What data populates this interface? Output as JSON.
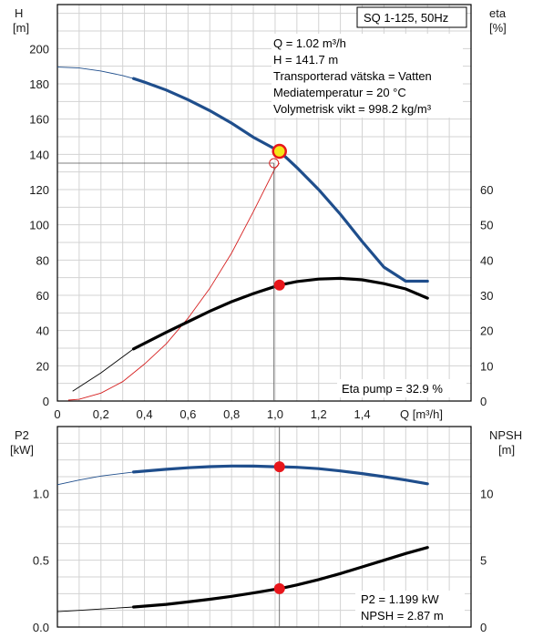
{
  "chart_data": [
    {
      "type": "line",
      "panel": "performance",
      "title": "SQ 1-125, 50Hz",
      "xlabel": "Q [m³/h]",
      "xlim": [
        0,
        1.9
      ],
      "x_ticks": [
        "0",
        "0,2",
        "0,4",
        "0,6",
        "0,8",
        "1,0",
        "1,2",
        "1,4"
      ],
      "y_left": {
        "label_top": "H",
        "label_unit": "[m]",
        "lim": [
          0,
          225
        ],
        "ticks": [
          "0",
          "20",
          "40",
          "60",
          "80",
          "100",
          "120",
          "140",
          "160",
          "180",
          "200"
        ]
      },
      "y_right": {
        "label_top": "eta",
        "label_unit": "[%]",
        "lim": [
          0,
          112.5
        ],
        "ticks": [
          "0",
          "10",
          "20",
          "30",
          "40",
          "50",
          "60"
        ]
      },
      "grid": true,
      "info_lines": [
        "Q = 1.02 m³/h",
        "H = 141.7 m",
        "Transporterad vätska = Vatten",
        "Mediatemperatur = 20 °C",
        "Volymetrisk vikt = 998.2 kg/m³"
      ],
      "eta_note": "Eta pump = 32.9 %",
      "series": [
        {
          "role": "head",
          "axis": "left",
          "color": "#1f4e8c",
          "x": [
            0.0,
            0.1,
            0.2,
            0.3,
            0.35,
            0.4,
            0.5,
            0.6,
            0.7,
            0.8,
            0.9,
            1.0,
            1.02,
            1.1,
            1.2,
            1.3,
            1.4,
            1.5,
            1.6,
            1.7
          ],
          "y": [
            189.5,
            189.0,
            187.3,
            184.7,
            183.0,
            181.0,
            176.5,
            171.0,
            164.8,
            157.7,
            149.7,
            143.0,
            141.7,
            132.5,
            120.0,
            106.0,
            90.5,
            76.0,
            68.0,
            68.0
          ],
          "solid_from": 0.35,
          "solid_to": 1.7
        },
        {
          "role": "efficiency",
          "axis": "right",
          "color": "#000000",
          "x": [
            0.07,
            0.2,
            0.35,
            0.5,
            0.6,
            0.7,
            0.8,
            0.9,
            1.0,
            1.02,
            1.1,
            1.2,
            1.3,
            1.4,
            1.5,
            1.6,
            1.7
          ],
          "y": [
            2.8,
            8.0,
            14.8,
            19.5,
            22.5,
            25.5,
            28.2,
            30.5,
            32.5,
            32.9,
            33.9,
            34.6,
            34.8,
            34.4,
            33.3,
            31.8,
            29.2
          ],
          "solid_from": 0.35,
          "solid_to": 1.7
        },
        {
          "role": "system-curve",
          "axis": "left",
          "color": "#d62020",
          "x": [
            0.05,
            0.1,
            0.2,
            0.3,
            0.4,
            0.5,
            0.6,
            0.7,
            0.8,
            0.9,
            1.0,
            1.02
          ],
          "y": [
            0.5,
            1.0,
            4.5,
            11.0,
            21.0,
            32.5,
            47.0,
            64.0,
            84.0,
            107.5,
            132.0,
            135.0
          ]
        }
      ],
      "duty_points": [
        {
          "axis": "left",
          "x": 1.02,
          "y": 141.7,
          "style": "operating"
        },
        {
          "axis": "right",
          "x": 1.02,
          "y": 32.9,
          "style": "marker"
        },
        {
          "axis": "left",
          "x": 1.02,
          "y": 135.0,
          "style": "hollow"
        }
      ]
    },
    {
      "type": "line",
      "panel": "power-npsh",
      "xlim": [
        0,
        1.9
      ],
      "y_left": {
        "label_top": "P2",
        "label_unit": "[kW]",
        "lim": [
          0,
          1.5
        ],
        "ticks": [
          "0.0",
          "0.5",
          "1.0"
        ]
      },
      "y_right": {
        "label_top": "NPSH",
        "label_unit": "[m]",
        "lim": [
          0,
          15
        ],
        "ticks": [
          "0",
          "5",
          "10"
        ]
      },
      "grid": true,
      "info_lines": [
        "P2 = 1.199 kW",
        "NPSH = 2.87 m"
      ],
      "series": [
        {
          "role": "power",
          "axis": "left",
          "color": "#1f4e8c",
          "x": [
            0.0,
            0.1,
            0.2,
            0.35,
            0.5,
            0.6,
            0.7,
            0.8,
            0.9,
            1.0,
            1.02,
            1.1,
            1.2,
            1.3,
            1.4,
            1.5,
            1.6,
            1.7
          ],
          "y": [
            1.065,
            1.1,
            1.13,
            1.16,
            1.18,
            1.192,
            1.2,
            1.205,
            1.204,
            1.199,
            1.199,
            1.195,
            1.185,
            1.168,
            1.148,
            1.125,
            1.1,
            1.072
          ],
          "solid_from": 0.35,
          "solid_to": 1.7
        },
        {
          "role": "npsh",
          "axis": "right",
          "color": "#000000",
          "x": [
            0.0,
            0.1,
            0.2,
            0.35,
            0.5,
            0.6,
            0.7,
            0.8,
            0.9,
            1.0,
            1.02,
            1.1,
            1.2,
            1.3,
            1.4,
            1.5,
            1.6,
            1.7
          ],
          "y": [
            1.15,
            1.25,
            1.35,
            1.5,
            1.7,
            1.88,
            2.08,
            2.3,
            2.55,
            2.82,
            2.87,
            3.15,
            3.55,
            4.0,
            4.5,
            5.0,
            5.5,
            5.95
          ],
          "solid_from": 0.35,
          "solid_to": 1.7
        }
      ],
      "duty_points": [
        {
          "axis": "left",
          "x": 1.02,
          "y": 1.199,
          "style": "marker"
        },
        {
          "axis": "right",
          "x": 1.02,
          "y": 2.87,
          "style": "marker"
        }
      ]
    }
  ]
}
